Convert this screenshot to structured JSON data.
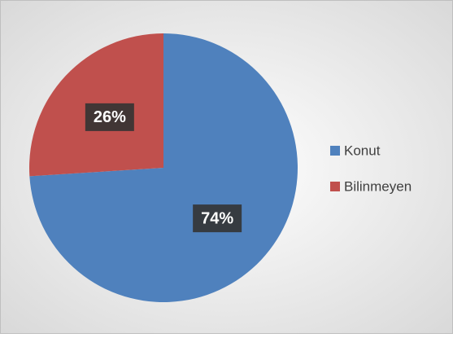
{
  "chart_data": {
    "type": "pie",
    "categories": [
      "Konut",
      "Bilinmeyen"
    ],
    "values": [
      74,
      26
    ],
    "value_labels": [
      "74%",
      "26%"
    ],
    "colors": [
      "#4f81bd",
      "#c0504d"
    ],
    "legend": "right"
  }
}
